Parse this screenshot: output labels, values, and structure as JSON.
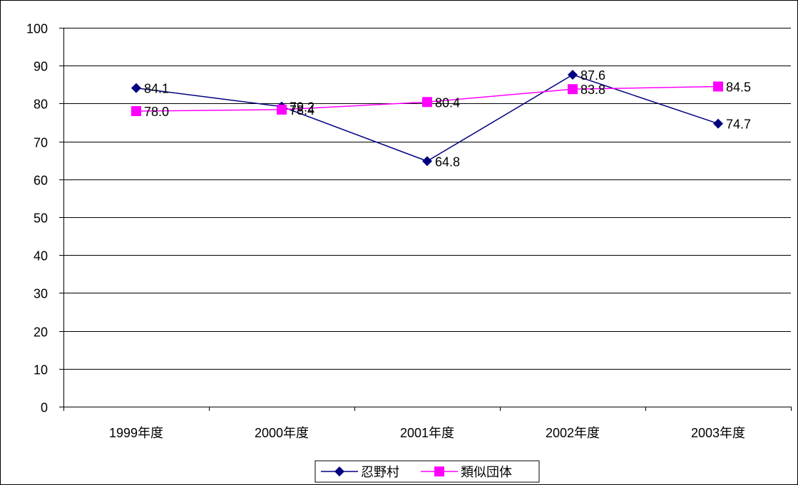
{
  "chart_data": {
    "type": "line",
    "categories": [
      "1999年度",
      "2000年度",
      "2001年度",
      "2002年度",
      "2003年度"
    ],
    "ylim": [
      0,
      100
    ],
    "yticks": [
      0,
      10,
      20,
      30,
      40,
      50,
      60,
      70,
      80,
      90,
      100
    ],
    "grid": true,
    "legend_position": "bottom",
    "series": [
      {
        "name": "忍野村",
        "values": [
          84.1,
          79.2,
          64.8,
          87.6,
          74.7
        ],
        "labels": [
          "84.1",
          "79.2",
          "64.8",
          "87.6",
          "74.7"
        ],
        "color": "#000080",
        "marker": "diamond"
      },
      {
        "name": "類似団体",
        "values": [
          78.0,
          78.4,
          80.4,
          83.8,
          84.5
        ],
        "labels": [
          "78.0",
          "78.4",
          "80.4",
          "83.8",
          "84.5"
        ],
        "color": "#ff00ff",
        "marker": "square"
      }
    ]
  }
}
